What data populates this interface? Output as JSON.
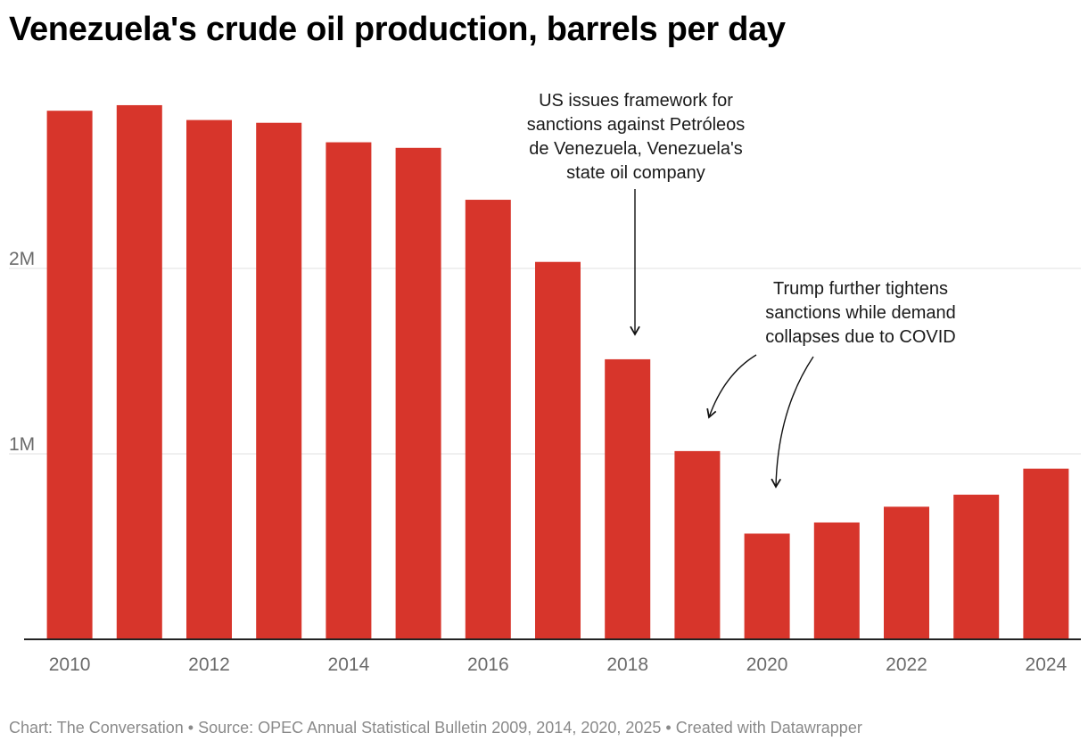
{
  "chart_data": {
    "type": "bar",
    "title": "Venezuela's crude oil production, barrels per day",
    "categories": [
      "2010",
      "2011",
      "2012",
      "2013",
      "2014",
      "2015",
      "2016",
      "2017",
      "2018",
      "2019",
      "2020",
      "2021",
      "2022",
      "2023",
      "2024"
    ],
    "values": [
      2850000,
      2880000,
      2800000,
      2785000,
      2680000,
      2650000,
      2370000,
      2035000,
      1510000,
      1015000,
      570000,
      630000,
      715000,
      780000,
      920000
    ],
    "x_tick_labels": [
      "2010",
      "2012",
      "2014",
      "2016",
      "2018",
      "2020",
      "2022",
      "2024"
    ],
    "y_ticks": [
      {
        "value": 1000000,
        "label": "1M"
      },
      {
        "value": 2000000,
        "label": "2M"
      }
    ],
    "ylim": [
      0,
      3000000
    ],
    "xlabel": "",
    "ylabel": "",
    "bar_color": "#d7352b",
    "grid": true,
    "annotations": [
      {
        "lines": [
          "US issues framework for",
          "sanctions against Petróleos",
          "de Venezuela, Venezuela's",
          "state oil company"
        ],
        "points_to": [
          "2018"
        ]
      },
      {
        "lines": [
          "Trump further tightens",
          "sanctions while demand",
          "collapses due to COVID"
        ],
        "points_to": [
          "2019",
          "2020"
        ]
      }
    ]
  },
  "footer": "Chart: The Conversation • Source: OPEC Annual Statistical Bulletin 2009, 2014, 2020, 2025 • Created with Datawrapper"
}
